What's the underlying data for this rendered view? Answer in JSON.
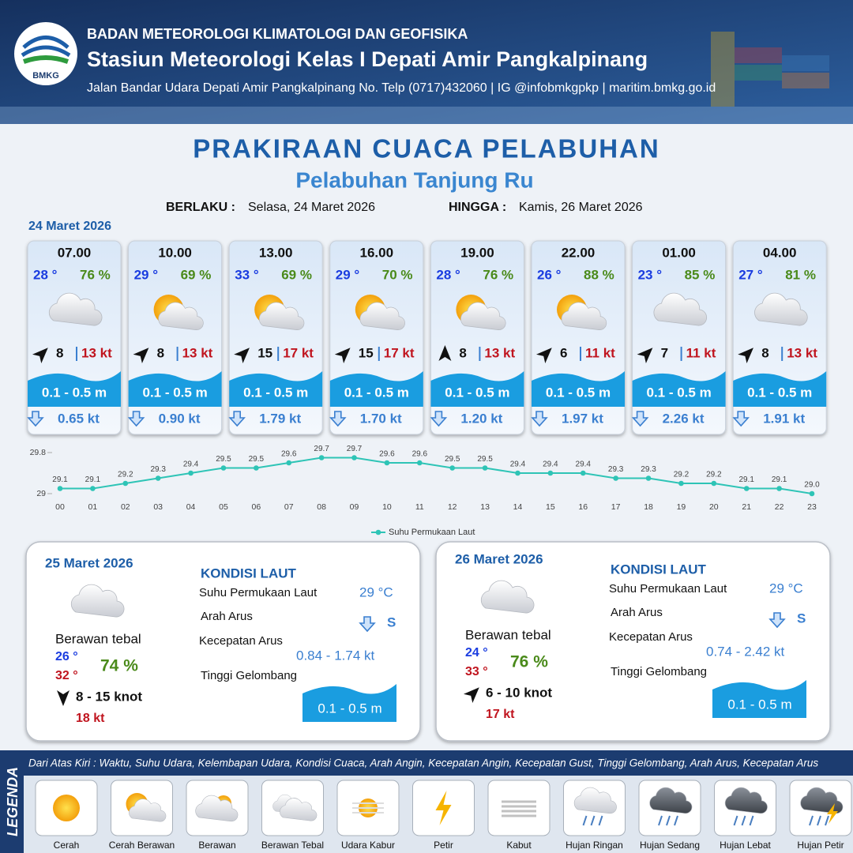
{
  "header": {
    "logo_text": "BMKG",
    "org": "BADAN METEOROLOGI KLIMATOLOGI DAN GEOFISIKA",
    "station": "Stasiun Meteorologi Kelas I Depati Amir Pangkalpinang",
    "address": "Jalan Bandar Udara Depati Amir Pangkalpinang No. Telp (0717)432060 | IG @infobmkgpkp | maritim.bmkg.go.id"
  },
  "title": "PRAKIRAAN CUACA PELABUHAN",
  "subtitle": "Pelabuhan Tanjung Ru",
  "validity": {
    "from_label": "BERLAKU :",
    "from": "Selasa, 24 Maret 2026",
    "to_label": "HINGGA :",
    "to": "Kamis, 26 Maret 2026"
  },
  "day1": {
    "date": "24 Maret 2026",
    "cards": [
      {
        "time": "07.00",
        "temp": "28 °",
        "humidity": "76 %",
        "wind": "8",
        "gust": "13 kt",
        "wave": "0.1 - 0.5 m",
        "current": "0.65 kt"
      },
      {
        "time": "10.00",
        "temp": "29 °",
        "humidity": "69 %",
        "wind": "8",
        "gust": "13 kt",
        "wave": "0.1 - 0.5 m",
        "current": "0.90 kt"
      },
      {
        "time": "13.00",
        "temp": "33 °",
        "humidity": "69 %",
        "wind": "15",
        "gust": "17 kt",
        "wave": "0.1 - 0.5 m",
        "current": "1.79 kt"
      },
      {
        "time": "16.00",
        "temp": "29 °",
        "humidity": "70 %",
        "wind": "15",
        "gust": "17 kt",
        "wave": "0.1 - 0.5 m",
        "current": "1.70 kt"
      },
      {
        "time": "19.00",
        "temp": "28 °",
        "humidity": "76 %",
        "wind": "8",
        "gust": "13 kt",
        "wave": "0.1 - 0.5 m",
        "current": "1.20 kt"
      },
      {
        "time": "22.00",
        "temp": "26 °",
        "humidity": "88 %",
        "wind": "6",
        "gust": "11 kt",
        "wave": "0.1 - 0.5 m",
        "current": "1.97 kt"
      },
      {
        "time": "01.00",
        "temp": "23 °",
        "humidity": "85 %",
        "wind": "7",
        "gust": "11 kt",
        "wave": "0.1 - 0.5 m",
        "current": "2.26 kt"
      },
      {
        "time": "04.00",
        "temp": "27 °",
        "humidity": "81 %",
        "wind": "8",
        "gust": "13 kt",
        "wave": "0.1 - 0.5 m",
        "current": "1.91 kt"
      }
    ]
  },
  "chart_data": {
    "type": "line",
    "categories": [
      "00",
      "01",
      "02",
      "03",
      "04",
      "05",
      "06",
      "07",
      "08",
      "09",
      "10",
      "11",
      "12",
      "13",
      "14",
      "15",
      "16",
      "17",
      "18",
      "19",
      "20",
      "21",
      "22",
      "23"
    ],
    "series": [
      {
        "name": "Suhu Permukaan Laut",
        "color": "#2ec4b6",
        "values": [
          29.1,
          29.1,
          29.2,
          29.3,
          29.4,
          29.5,
          29.5,
          29.6,
          29.7,
          29.7,
          29.6,
          29.6,
          29.5,
          29.5,
          29.4,
          29.4,
          29.4,
          29.3,
          29.3,
          29.2,
          29.2,
          29.1,
          29.1,
          29.0
        ],
        "value_labels": [
          "29.1",
          "29.1",
          "29.2",
          "29.3",
          "29.4",
          "29.5",
          "29.5",
          "29.6",
          "29.7",
          "29.7",
          "29.6",
          "29.6",
          "29.5",
          "29.5",
          "29.4",
          "29.4",
          "29.4",
          "29.3",
          "29.3",
          "29.2",
          "29.2",
          "29.1",
          "29.1",
          "29.0"
        ]
      }
    ],
    "ylim": [
      29,
      29.8
    ],
    "yticks": [
      29,
      29.8
    ],
    "grid": false
  },
  "days": [
    {
      "date": "25 Maret 2026",
      "condition": "Berawan tebal",
      "temp_min": "26 °",
      "temp_max": "32 °",
      "humidity": "74 %",
      "wind": "8  - 15 knot",
      "gust": "18 kt",
      "sea_title": "KONDISI LAUT",
      "sst_label": "Suhu Permukaan Laut",
      "sst": "29 °C",
      "current_dir_label": "Arah Arus",
      "current_dir": "S",
      "current_speed_label": "Kecepatan Arus",
      "current_speed": "0.84  - 1.74 kt",
      "wave_label": "Tinggi Gelombang",
      "wave": "0.1 - 0.5 m"
    },
    {
      "date": "26 Maret 2026",
      "condition": "Berawan tebal",
      "temp_min": "24 °",
      "temp_max": "33 °",
      "humidity": "76 %",
      "wind": "6  - 10 knot",
      "gust": "17 kt",
      "sea_title": "KONDISI LAUT",
      "sst_label": "Suhu Permukaan Laut",
      "sst": "29 °C",
      "current_dir_label": "Arah Arus",
      "current_dir": "S",
      "current_speed_label": "Kecepatan Arus",
      "current_speed": "0.74  - 2.42 kt",
      "wave_label": "Tinggi Gelombang",
      "wave": "0.1 - 0.5 m"
    }
  ],
  "legend": {
    "title": "LEGENDA",
    "description": "Dari Atas Kiri : Waktu, Suhu Udara, Kelembapan Udara, Kondisi Cuaca, Arah Angin, Kecepatan Angin, Kecepatan Gust, Tinggi Gelombang, Arah Arus, Kecepatan Arus",
    "items": [
      "Cerah",
      "Cerah Berawan",
      "Berawan",
      "Berawan Tebal",
      "Udara Kabur",
      "Petir",
      "Kabut",
      "Hujan Ringan",
      "Hujan Sedang",
      "Hujan Lebat",
      "Hujan Petir"
    ]
  }
}
